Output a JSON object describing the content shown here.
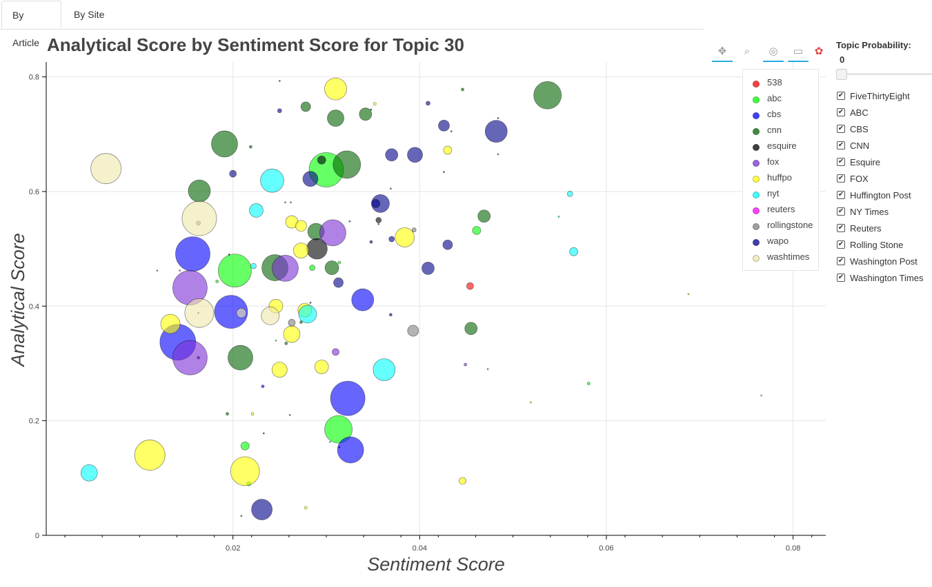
{
  "tabs": [
    {
      "label": "By Article"
    },
    {
      "label": "By Site"
    }
  ],
  "title": "Analytical Score by Sentiment Score for Topic 30",
  "toolbar": {
    "icons": [
      "pan-icon",
      "box-zoom-icon",
      "wheel-zoom-icon",
      "hover-icon",
      "bokeh-logo-icon"
    ]
  },
  "sidebar": {
    "title": "Topic Probability:",
    "value": "0",
    "slider_value": 0,
    "checkboxes": [
      {
        "label": "FiveThirtyEight",
        "checked": true
      },
      {
        "label": "ABC",
        "checked": true
      },
      {
        "label": "CBS",
        "checked": true
      },
      {
        "label": "CNN",
        "checked": true
      },
      {
        "label": "Esquire",
        "checked": true
      },
      {
        "label": "FOX",
        "checked": true
      },
      {
        "label": "Huffington Post",
        "checked": true
      },
      {
        "label": "NY Times",
        "checked": true
      },
      {
        "label": "Reuters",
        "checked": true
      },
      {
        "label": "Rolling Stone",
        "checked": true
      },
      {
        "label": "Washington Post",
        "checked": true
      },
      {
        "label": "Washington Times",
        "checked": true
      }
    ]
  },
  "chart_data": {
    "type": "scatter",
    "title": "Analytical Score by Sentiment Score for Topic 30",
    "xlabel": "Sentiment Score",
    "ylabel": "Analytical Score",
    "xlim": [
      0.0,
      0.0835
    ],
    "ylim": [
      0.0,
      0.826
    ],
    "xticks": [
      0.02,
      0.04,
      0.06,
      0.08
    ],
    "xtick_labels": [
      "0.02",
      "0.04",
      "0.06",
      "0.08"
    ],
    "yticks": [
      0,
      0.2,
      0.4,
      0.6,
      0.8
    ],
    "ytick_labels": [
      "0",
      "0.2",
      "0.4",
      "0.6",
      "0.8"
    ],
    "grid": true,
    "legend_position": "top-right",
    "series": [
      {
        "name": "538",
        "color": "#ff0000",
        "points": [
          {
            "x": 0.0454,
            "y": 0.435,
            "r": 5
          }
        ]
      },
      {
        "name": "abc",
        "color": "#00ff00",
        "points": [
          {
            "x": 0.03,
            "y": 0.638,
            "r": 25
          },
          {
            "x": 0.0202,
            "y": 0.462,
            "r": 24
          },
          {
            "x": 0.0313,
            "y": 0.185,
            "r": 20
          },
          {
            "x": 0.0461,
            "y": 0.532,
            "r": 6
          },
          {
            "x": 0.0213,
            "y": 0.156,
            "r": 6
          },
          {
            "x": 0.0285,
            "y": 0.467,
            "r": 4
          },
          {
            "x": 0.0217,
            "y": 0.09,
            "r": 3
          },
          {
            "x": 0.0581,
            "y": 0.265,
            "r": 2
          },
          {
            "x": 0.0314,
            "y": 0.476,
            "r": 2
          },
          {
            "x": 0.0183,
            "y": 0.443,
            "r": 2
          },
          {
            "x": 0.0473,
            "y": 0.29,
            "r": 1
          }
        ]
      },
      {
        "name": "cbs",
        "color": "#0000ff",
        "points": [
          {
            "x": 0.0157,
            "y": 0.491,
            "r": 25
          },
          {
            "x": 0.0141,
            "y": 0.337,
            "r": 26
          },
          {
            "x": 0.0198,
            "y": 0.39,
            "r": 24
          },
          {
            "x": 0.0323,
            "y": 0.239,
            "r": 25
          },
          {
            "x": 0.0326,
            "y": 0.149,
            "r": 19
          },
          {
            "x": 0.0339,
            "y": 0.411,
            "r": 16
          },
          {
            "x": 0.0232,
            "y": 0.26,
            "r": 2
          },
          {
            "x": 0.0325,
            "y": 0.548,
            "r": 1
          },
          {
            "x": 0.0163,
            "y": 0.388,
            "r": 1
          }
        ]
      },
      {
        "name": "cnn",
        "color": "#006400",
        "points": [
          {
            "x": 0.0537,
            "y": 0.768,
            "r": 20
          },
          {
            "x": 0.0191,
            "y": 0.683,
            "r": 19
          },
          {
            "x": 0.0322,
            "y": 0.647,
            "r": 20
          },
          {
            "x": 0.0164,
            "y": 0.601,
            "r": 16
          },
          {
            "x": 0.0245,
            "y": 0.467,
            "r": 19
          },
          {
            "x": 0.0208,
            "y": 0.31,
            "r": 18
          },
          {
            "x": 0.031,
            "y": 0.728,
            "r": 12
          },
          {
            "x": 0.0289,
            "y": 0.53,
            "r": 12
          },
          {
            "x": 0.0342,
            "y": 0.735,
            "r": 9
          },
          {
            "x": 0.0278,
            "y": 0.748,
            "r": 7
          },
          {
            "x": 0.0306,
            "y": 0.467,
            "r": 10
          },
          {
            "x": 0.0469,
            "y": 0.557,
            "r": 9
          },
          {
            "x": 0.0455,
            "y": 0.361,
            "r": 9
          },
          {
            "x": 0.0257,
            "y": 0.335,
            "r": 2
          },
          {
            "x": 0.0194,
            "y": 0.212,
            "r": 2
          },
          {
            "x": 0.0273,
            "y": 0.372,
            "r": 2
          },
          {
            "x": 0.0219,
            "y": 0.678,
            "r": 2
          },
          {
            "x": 0.0446,
            "y": 0.778,
            "r": 2
          },
          {
            "x": 0.025,
            "y": 0.793,
            "r": 1
          },
          {
            "x": 0.0369,
            "y": 0.605,
            "r": 1
          },
          {
            "x": 0.0209,
            "y": 0.034,
            "r": 1
          },
          {
            "x": 0.0484,
            "y": 0.665,
            "r": 1
          },
          {
            "x": 0.0356,
            "y": 0.543,
            "r": 1
          }
        ]
      },
      {
        "name": "esquire",
        "color": "#000000",
        "points": [
          {
            "x": 0.029,
            "y": 0.5,
            "r": 15
          },
          {
            "x": 0.0295,
            "y": 0.655,
            "r": 6
          },
          {
            "x": 0.0356,
            "y": 0.55,
            "r": 4
          },
          {
            "x": 0.0163,
            "y": 0.31,
            "r": 2
          },
          {
            "x": 0.0233,
            "y": 0.178,
            "r": 1
          },
          {
            "x": 0.0283,
            "y": 0.406,
            "r": 1
          },
          {
            "x": 0.0484,
            "y": 0.728,
            "r": 1
          }
        ]
      },
      {
        "name": "fox",
        "color": "#7b2fd6",
        "points": [
          {
            "x": 0.0154,
            "y": 0.432,
            "r": 25
          },
          {
            "x": 0.0154,
            "y": 0.31,
            "r": 25
          },
          {
            "x": 0.0256,
            "y": 0.466,
            "r": 19
          },
          {
            "x": 0.0307,
            "y": 0.528,
            "r": 19
          },
          {
            "x": 0.031,
            "y": 0.32,
            "r": 5
          },
          {
            "x": 0.0262,
            "y": 0.581,
            "r": 1
          },
          {
            "x": 0.0449,
            "y": 0.298,
            "r": 2
          },
          {
            "x": 0.0143,
            "y": 0.462,
            "r": 1
          },
          {
            "x": 0.0261,
            "y": 0.21,
            "r": 1
          }
        ]
      },
      {
        "name": "huffpo",
        "color": "#ffff00",
        "points": [
          {
            "x": 0.0111,
            "y": 0.14,
            "r": 22
          },
          {
            "x": 0.0213,
            "y": 0.112,
            "r": 21
          },
          {
            "x": 0.031,
            "y": 0.779,
            "r": 16
          },
          {
            "x": 0.0384,
            "y": 0.52,
            "r": 14
          },
          {
            "x": 0.0133,
            "y": 0.369,
            "r": 14
          },
          {
            "x": 0.0263,
            "y": 0.351,
            "r": 12
          },
          {
            "x": 0.0273,
            "y": 0.497,
            "r": 11
          },
          {
            "x": 0.025,
            "y": 0.289,
            "r": 11
          },
          {
            "x": 0.0295,
            "y": 0.294,
            "r": 10
          },
          {
            "x": 0.0246,
            "y": 0.4,
            "r": 10
          },
          {
            "x": 0.0277,
            "y": 0.393,
            "r": 10
          },
          {
            "x": 0.0263,
            "y": 0.547,
            "r": 9
          },
          {
            "x": 0.0273,
            "y": 0.54,
            "r": 8
          },
          {
            "x": 0.043,
            "y": 0.672,
            "r": 6
          },
          {
            "x": 0.0446,
            "y": 0.095,
            "r": 5
          },
          {
            "x": 0.0221,
            "y": 0.212,
            "r": 2
          },
          {
            "x": 0.0278,
            "y": 0.048,
            "r": 2
          },
          {
            "x": 0.0352,
            "y": 0.753,
            "r": 2
          },
          {
            "x": 0.0766,
            "y": 0.244,
            "r": 1
          },
          {
            "x": 0.0688,
            "y": 0.421,
            "r": 1
          },
          {
            "x": 0.0519,
            "y": 0.232,
            "r": 1
          }
        ]
      },
      {
        "name": "nyt",
        "color": "#00ffff",
        "points": [
          {
            "x": 0.0046,
            "y": 0.109,
            "r": 12
          },
          {
            "x": 0.0242,
            "y": 0.619,
            "r": 17
          },
          {
            "x": 0.0362,
            "y": 0.289,
            "r": 16
          },
          {
            "x": 0.028,
            "y": 0.386,
            "r": 13
          },
          {
            "x": 0.0225,
            "y": 0.567,
            "r": 10
          },
          {
            "x": 0.0565,
            "y": 0.495,
            "r": 6
          },
          {
            "x": 0.0561,
            "y": 0.596,
            "r": 4
          },
          {
            "x": 0.0222,
            "y": 0.47,
            "r": 4
          },
          {
            "x": 0.0549,
            "y": 0.556,
            "r": 1
          },
          {
            "x": 0.0246,
            "y": 0.34,
            "r": 1
          },
          {
            "x": 0.0304,
            "y": 0.163,
            "r": 1
          }
        ]
      },
      {
        "name": "reuters",
        "color": "#ff00ff",
        "points": [
          {
            "x": 0.0119,
            "y": 0.462,
            "r": 1
          },
          {
            "x": 0.0256,
            "y": 0.581,
            "r": 1
          }
        ]
      },
      {
        "name": "rollingstone",
        "color": "#808080",
        "points": [
          {
            "x": 0.0393,
            "y": 0.357,
            "r": 8
          },
          {
            "x": 0.0263,
            "y": 0.371,
            "r": 5
          },
          {
            "x": 0.0163,
            "y": 0.545,
            "r": 3
          },
          {
            "x": 0.0394,
            "y": 0.533,
            "r": 3
          }
        ]
      },
      {
        "name": "wapo",
        "color": "#00008b",
        "points": [
          {
            "x": 0.0231,
            "y": 0.045,
            "r": 15
          },
          {
            "x": 0.0482,
            "y": 0.705,
            "r": 16
          },
          {
            "x": 0.0358,
            "y": 0.579,
            "r": 13
          },
          {
            "x": 0.0395,
            "y": 0.664,
            "r": 11
          },
          {
            "x": 0.037,
            "y": 0.664,
            "r": 9
          },
          {
            "x": 0.0353,
            "y": 0.579,
            "r": 6
          },
          {
            "x": 0.0283,
            "y": 0.622,
            "r": 11
          },
          {
            "x": 0.0409,
            "y": 0.466,
            "r": 9
          },
          {
            "x": 0.043,
            "y": 0.507,
            "r": 7
          },
          {
            "x": 0.0426,
            "y": 0.715,
            "r": 8
          },
          {
            "x": 0.0313,
            "y": 0.441,
            "r": 7
          },
          {
            "x": 0.02,
            "y": 0.631,
            "r": 5
          },
          {
            "x": 0.037,
            "y": 0.517,
            "r": 4
          },
          {
            "x": 0.025,
            "y": 0.741,
            "r": 3
          },
          {
            "x": 0.0409,
            "y": 0.754,
            "r": 3
          },
          {
            "x": 0.0348,
            "y": 0.512,
            "r": 2
          },
          {
            "x": 0.0369,
            "y": 0.385,
            "r": 2
          },
          {
            "x": 0.0314,
            "y": 0.154,
            "r": 1
          },
          {
            "x": 0.0348,
            "y": 0.743,
            "r": 1
          },
          {
            "x": 0.0196,
            "y": 0.49,
            "r": 1
          },
          {
            "x": 0.0426,
            "y": 0.634,
            "r": 1
          },
          {
            "x": 0.0434,
            "y": 0.705,
            "r": 1
          }
        ]
      },
      {
        "name": "washtimes",
        "color": "#eee8aa",
        "points": [
          {
            "x": 0.0064,
            "y": 0.64,
            "r": 22
          },
          {
            "x": 0.0164,
            "y": 0.553,
            "r": 25
          },
          {
            "x": 0.0164,
            "y": 0.388,
            "r": 21
          },
          {
            "x": 0.024,
            "y": 0.383,
            "r": 13
          },
          {
            "x": 0.0802,
            "y": 0.782,
            "r": 10
          },
          {
            "x": 0.0209,
            "y": 0.388,
            "r": 7
          }
        ]
      }
    ]
  }
}
